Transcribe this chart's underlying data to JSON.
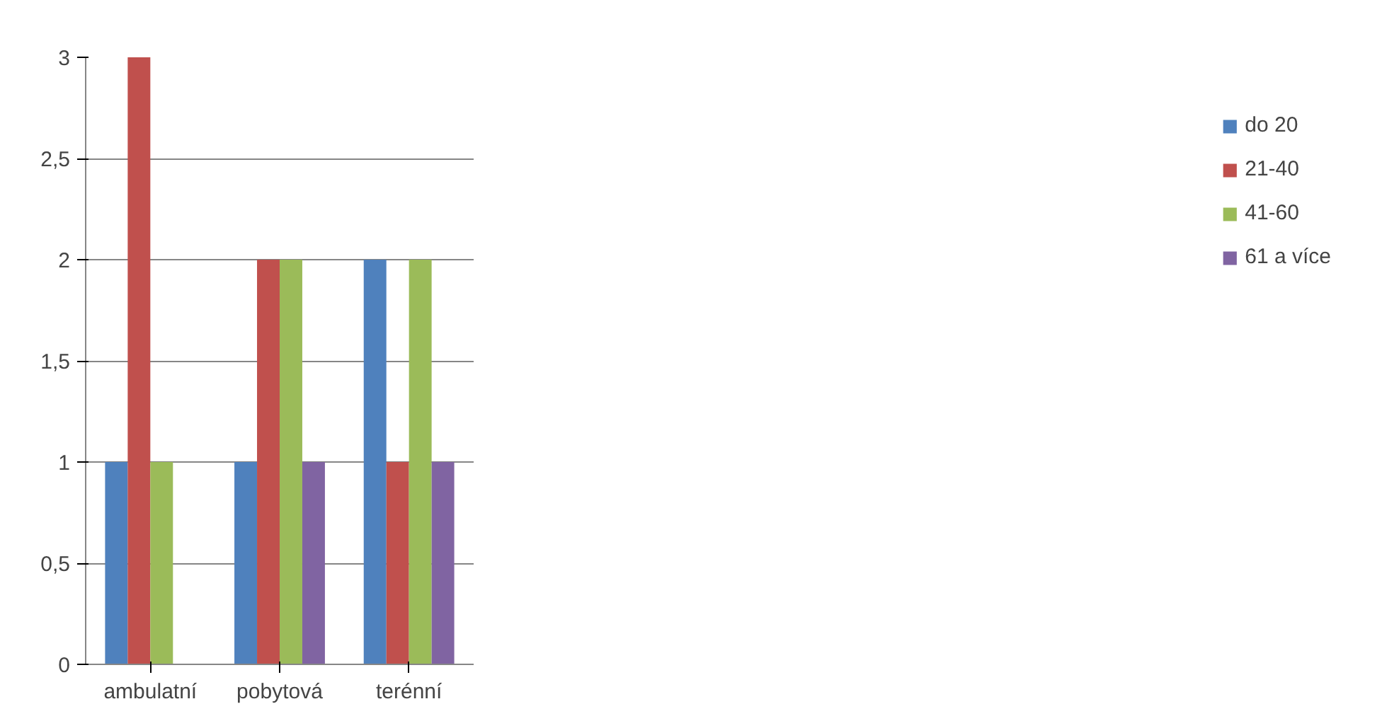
{
  "chart_data": {
    "type": "bar",
    "categories": [
      "ambulatní",
      "pobytová",
      "terénní"
    ],
    "series": [
      {
        "name": "do 20",
        "color": "#4f81bd",
        "values": [
          1,
          1,
          2
        ]
      },
      {
        "name": "21-40",
        "color": "#c0504d",
        "values": [
          3,
          2,
          1
        ]
      },
      {
        "name": "41-60",
        "color": "#9bbb59",
        "values": [
          1,
          2,
          2
        ]
      },
      {
        "name": "61 a více",
        "color": "#8064a2",
        "values": [
          0,
          1,
          1
        ]
      }
    ],
    "ylim": [
      0,
      3
    ],
    "yticks": [
      0,
      {
        "value": 0.5,
        "label": "0,5"
      },
      1,
      {
        "value": 1.5,
        "label": "1,5"
      },
      2,
      {
        "value": 2.5,
        "label": "2,5"
      },
      3
    ],
    "grid": "y",
    "legend": "right"
  }
}
